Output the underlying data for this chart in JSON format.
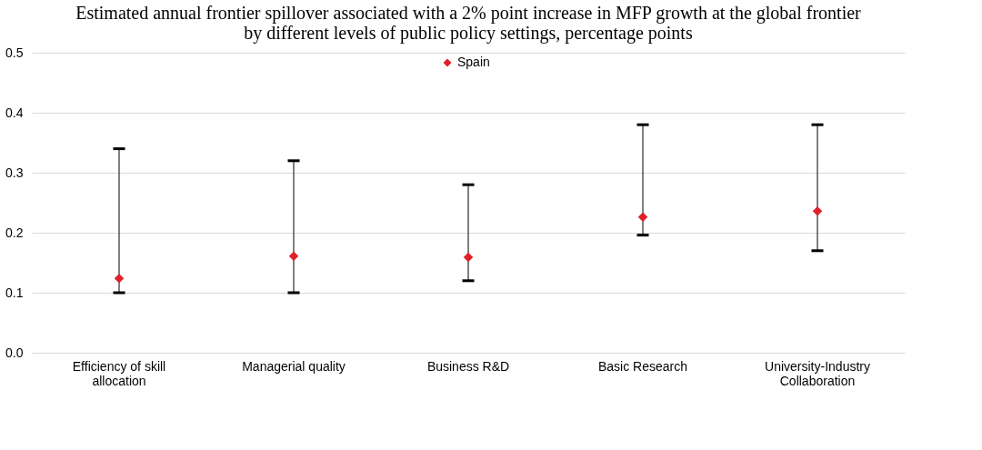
{
  "chart_data": {
    "type": "scatter",
    "title": [
      "Estimated annual frontier spillover associated with a 2% point increase in MFP growth at the global frontier",
      "by different levels of public policy settings, percentage points"
    ],
    "categories": [
      "Efficiency of skill allocation",
      "Managerial quality",
      "Business R&D",
      "Basic Research",
      "University-Industry Collaboration"
    ],
    "series": [
      {
        "name": "Spain",
        "color": "#e02128",
        "values": [
          0.124,
          0.161,
          0.159,
          0.226,
          0.236
        ],
        "errors": [
          [
            0.1,
            0.34
          ],
          [
            0.1,
            0.32
          ],
          [
            0.12,
            0.28
          ],
          [
            0.196,
            0.38
          ],
          [
            0.17,
            0.38
          ]
        ]
      }
    ],
    "ylim": [
      0,
      0.5
    ],
    "yticks": [
      {
        "value": 0,
        "label": "0.0"
      },
      {
        "value": 0.1,
        "label": "0.1"
      },
      {
        "value": 0.2,
        "label": "0.2"
      },
      {
        "value": 0.3,
        "label": "0.3"
      },
      {
        "value": 0.4,
        "label": "0.4"
      },
      {
        "value": 0.5,
        "label": "0.5"
      }
    ],
    "grid": "y",
    "legend": "top",
    "marker": "diamond"
  }
}
